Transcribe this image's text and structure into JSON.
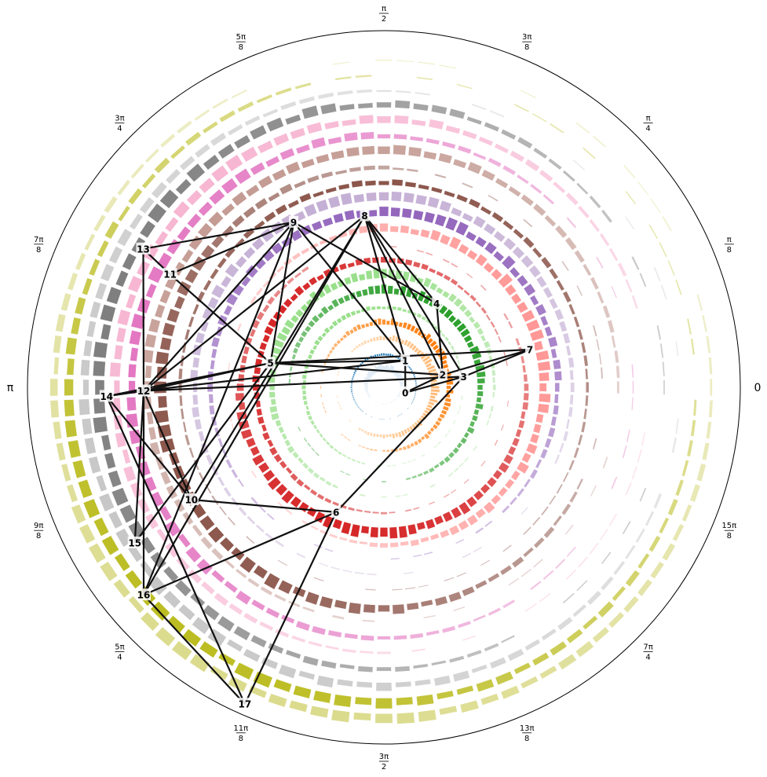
{
  "chart_data": {
    "type": "polar-ring-bar-network",
    "title": "",
    "angle_unit": "radians",
    "angular_tick_labels": [
      {
        "angle": 0.0,
        "num": "",
        "den": "",
        "plain": "0"
      },
      {
        "angle": 0.3927,
        "num": "π",
        "den": "8",
        "plain": ""
      },
      {
        "angle": 0.7854,
        "num": "π",
        "den": "4",
        "plain": ""
      },
      {
        "angle": 1.1781,
        "num": "3π",
        "den": "8",
        "plain": ""
      },
      {
        "angle": 1.5708,
        "num": "π",
        "den": "2",
        "plain": ""
      },
      {
        "angle": 1.9635,
        "num": "5π",
        "den": "8",
        "plain": ""
      },
      {
        "angle": 2.3562,
        "num": "3π",
        "den": "4",
        "plain": ""
      },
      {
        "angle": 2.7489,
        "num": "7π",
        "den": "8",
        "plain": ""
      },
      {
        "angle": 3.1416,
        "num": "",
        "den": "",
        "plain": "π"
      },
      {
        "angle": 3.5343,
        "num": "9π",
        "den": "8",
        "plain": ""
      },
      {
        "angle": 3.927,
        "num": "5π",
        "den": "4",
        "plain": ""
      },
      {
        "angle": 4.3197,
        "num": "11π",
        "den": "8",
        "plain": ""
      },
      {
        "angle": 4.7124,
        "num": "3π",
        "den": "2",
        "plain": ""
      },
      {
        "angle": 5.1051,
        "num": "13π",
        "den": "8",
        "plain": ""
      },
      {
        "angle": 5.4978,
        "num": "7π",
        "den": "4",
        "plain": ""
      },
      {
        "angle": 5.8905,
        "num": "15π",
        "den": "8",
        "plain": ""
      }
    ],
    "rings": [
      {
        "index": 0,
        "color": "#c6dbef",
        "intensity": 0.5,
        "bulge_angle": 1.57
      },
      {
        "index": 1,
        "color": "#1f77b4",
        "intensity": 0.15,
        "bulge_angle": 1.7
      },
      {
        "index": 2,
        "color": "#ffbb78",
        "intensity": 0.6,
        "bulge_angle": 0.1
      },
      {
        "index": 3,
        "color": "#ff7f0e",
        "intensity": 0.55,
        "bulge_angle": 0.6
      },
      {
        "index": 4,
        "color": "#98df8a",
        "intensity": 0.3,
        "bulge_angle": 2.3
      },
      {
        "index": 5,
        "color": "#2ca02c",
        "intensity": 0.7,
        "bulge_angle": 0.9
      },
      {
        "index": 6,
        "color": "#98df8a",
        "intensity": 0.75,
        "bulge_angle": 2.1
      },
      {
        "index": 7,
        "color": "#d62728",
        "intensity": 0.5,
        "bulge_angle": 2.6
      },
      {
        "index": 8,
        "color": "#d62728",
        "intensity": 0.85,
        "bulge_angle": 4.4
      },
      {
        "index": 9,
        "color": "#ff9896",
        "intensity": 0.85,
        "bulge_angle": 0.3
      },
      {
        "index": 10,
        "color": "#9467bd",
        "intensity": 0.8,
        "bulge_angle": 1.45
      },
      {
        "index": 11,
        "color": "#c5b0d5",
        "intensity": 0.75,
        "bulge_angle": 1.85
      },
      {
        "index": 12,
        "color": "#8c564b",
        "intensity": 0.4,
        "bulge_angle": 1.6
      },
      {
        "index": 13,
        "color": "#8c564b",
        "intensity": 0.9,
        "bulge_angle": 3.6
      },
      {
        "index": 14,
        "color": "#c49c94",
        "intensity": 0.75,
        "bulge_angle": 2.2
      },
      {
        "index": 15,
        "color": "#e377c2",
        "intensity": 0.8,
        "bulge_angle": 3.0
      },
      {
        "index": 16,
        "color": "#f7b6d2",
        "intensity": 0.75,
        "bulge_angle": 2.5
      },
      {
        "index": 17,
        "color": "#7f7f7f",
        "intensity": 0.9,
        "bulge_angle": 2.9
      },
      {
        "index": 18,
        "color": "#c7c7c7",
        "intensity": 0.75,
        "bulge_angle": 3.7
      },
      {
        "index": 19,
        "color": "#bcbd22",
        "intensity": 0.8,
        "bulge_angle": 4.0
      },
      {
        "index": 20,
        "color": "#dbdb8d",
        "intensity": 0.75,
        "bulge_angle": 4.3
      }
    ],
    "nodes": [
      {
        "id": "0",
        "x": 0.06,
        "y": -0.015
      },
      {
        "id": "1",
        "x": 0.06,
        "y": 0.075
      },
      {
        "id": "2",
        "x": 0.165,
        "y": 0.035
      },
      {
        "id": "3",
        "x": 0.224,
        "y": 0.03
      },
      {
        "id": "4",
        "x": 0.148,
        "y": 0.235
      },
      {
        "id": "5",
        "x": -0.318,
        "y": 0.068
      },
      {
        "id": "6",
        "x": -0.134,
        "y": -0.35
      },
      {
        "id": "7",
        "x": 0.41,
        "y": 0.106
      },
      {
        "id": "8",
        "x": -0.054,
        "y": 0.481
      },
      {
        "id": "9",
        "x": -0.253,
        "y": 0.463
      },
      {
        "id": "10",
        "x": -0.54,
        "y": -0.315
      },
      {
        "id": "11",
        "x": -0.6,
        "y": 0.317
      },
      {
        "id": "12",
        "x": -0.674,
        "y": -0.01
      },
      {
        "id": "13",
        "x": -0.675,
        "y": 0.388
      },
      {
        "id": "14",
        "x": -0.778,
        "y": -0.025
      },
      {
        "id": "15",
        "x": -0.699,
        "y": -0.436
      },
      {
        "id": "16",
        "x": -0.674,
        "y": -0.582
      },
      {
        "id": "17",
        "x": -0.39,
        "y": -0.888
      }
    ],
    "edges": [
      [
        "0",
        "1"
      ],
      [
        "0",
        "2"
      ],
      [
        "0",
        "3"
      ],
      [
        "1",
        "5"
      ],
      [
        "1",
        "8"
      ],
      [
        "1",
        "9"
      ],
      [
        "1",
        "12"
      ],
      [
        "2",
        "8"
      ],
      [
        "2",
        "5"
      ],
      [
        "2",
        "4"
      ],
      [
        "2",
        "7"
      ],
      [
        "3",
        "7"
      ],
      [
        "3",
        "8"
      ],
      [
        "3",
        "6"
      ],
      [
        "3",
        "12"
      ],
      [
        "4",
        "8"
      ],
      [
        "4",
        "9"
      ],
      [
        "5",
        "9"
      ],
      [
        "5",
        "7"
      ],
      [
        "5",
        "11"
      ],
      [
        "5",
        "12"
      ],
      [
        "5",
        "14"
      ],
      [
        "5",
        "15"
      ],
      [
        "6",
        "10"
      ],
      [
        "6",
        "16"
      ],
      [
        "6",
        "17"
      ],
      [
        "8",
        "12"
      ],
      [
        "8",
        "16"
      ],
      [
        "8",
        "10"
      ],
      [
        "9",
        "11"
      ],
      [
        "9",
        "12"
      ],
      [
        "9",
        "13"
      ],
      [
        "9",
        "16"
      ],
      [
        "10",
        "12"
      ],
      [
        "10",
        "14"
      ],
      [
        "11",
        "13"
      ],
      [
        "12",
        "13"
      ],
      [
        "12",
        "14"
      ],
      [
        "12",
        "15"
      ],
      [
        "12",
        "16"
      ],
      [
        "14",
        "17"
      ],
      [
        "16",
        "17"
      ]
    ]
  }
}
